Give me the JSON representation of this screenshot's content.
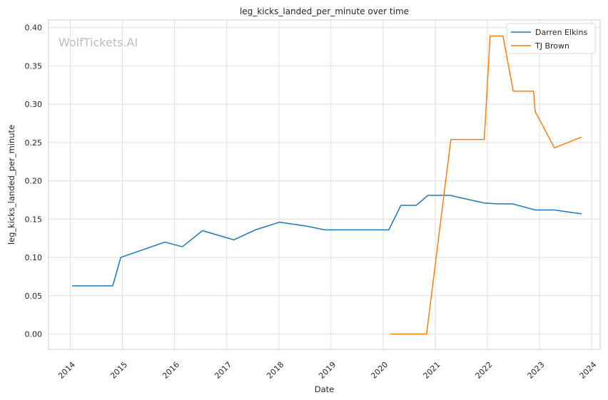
{
  "chart_data": {
    "type": "line",
    "title": "leg_kicks_landed_per_minute over time",
    "xlabel": "Date",
    "ylabel": "leg_kicks_landed_per_minute",
    "watermark": "WolfTickets.AI",
    "xlim": [
      "2013-08-01",
      "2024-03-01"
    ],
    "ylim": [
      -0.02,
      0.41
    ],
    "x_ticks": [
      "2014-01-01",
      "2015-01-01",
      "2016-01-01",
      "2017-01-01",
      "2018-01-01",
      "2019-01-01",
      "2020-01-01",
      "2021-01-01",
      "2022-01-01",
      "2023-01-01",
      "2024-01-01"
    ],
    "x_tick_labels": [
      "2014",
      "2015",
      "2016",
      "2017",
      "2018",
      "2019",
      "2020",
      "2021",
      "2022",
      "2023",
      "2024"
    ],
    "y_ticks": [
      0.0,
      0.05,
      0.1,
      0.15,
      0.2,
      0.25,
      0.3,
      0.35,
      0.4
    ],
    "y_tick_labels": [
      "0.00",
      "0.05",
      "0.10",
      "0.15",
      "0.20",
      "0.25",
      "0.30",
      "0.35",
      "0.40"
    ],
    "grid": true,
    "legend": "top-right",
    "series": [
      {
        "name": "Darren Elkins",
        "color": "#1f77b4",
        "points": [
          [
            "2014-01-15",
            0.063
          ],
          [
            "2014-10-25",
            0.063
          ],
          [
            "2014-12-20",
            0.1
          ],
          [
            "2015-10-25",
            0.12
          ],
          [
            "2016-02-25",
            0.114
          ],
          [
            "2016-07-15",
            0.135
          ],
          [
            "2017-02-20",
            0.123
          ],
          [
            "2017-07-20",
            0.136
          ],
          [
            "2018-01-05",
            0.146
          ],
          [
            "2018-07-10",
            0.141
          ],
          [
            "2018-11-20",
            0.136
          ],
          [
            "2019-07-01",
            0.136
          ],
          [
            "2020-02-10",
            0.136
          ],
          [
            "2020-05-05",
            0.168
          ],
          [
            "2020-08-20",
            0.168
          ],
          [
            "2020-11-10",
            0.181
          ],
          [
            "2021-04-15",
            0.181
          ],
          [
            "2021-07-20",
            0.177
          ],
          [
            "2021-12-10",
            0.171
          ],
          [
            "2022-03-15",
            0.17
          ],
          [
            "2022-06-25",
            0.17
          ],
          [
            "2022-12-01",
            0.162
          ],
          [
            "2023-04-15",
            0.162
          ],
          [
            "2023-10-20",
            0.157
          ]
        ]
      },
      {
        "name": "TJ Brown",
        "color": "#ff7f0e",
        "points": [
          [
            "2020-02-25",
            0.0
          ],
          [
            "2020-11-01",
            0.0
          ],
          [
            "2021-04-20",
            0.254
          ],
          [
            "2021-12-10",
            0.254
          ],
          [
            "2022-01-20",
            0.389
          ],
          [
            "2022-04-20",
            0.389
          ],
          [
            "2022-07-01",
            0.317
          ],
          [
            "2022-11-20",
            0.317
          ],
          [
            "2022-12-01",
            0.291
          ],
          [
            "2023-04-15",
            0.243
          ],
          [
            "2023-10-20",
            0.257
          ]
        ]
      }
    ]
  }
}
